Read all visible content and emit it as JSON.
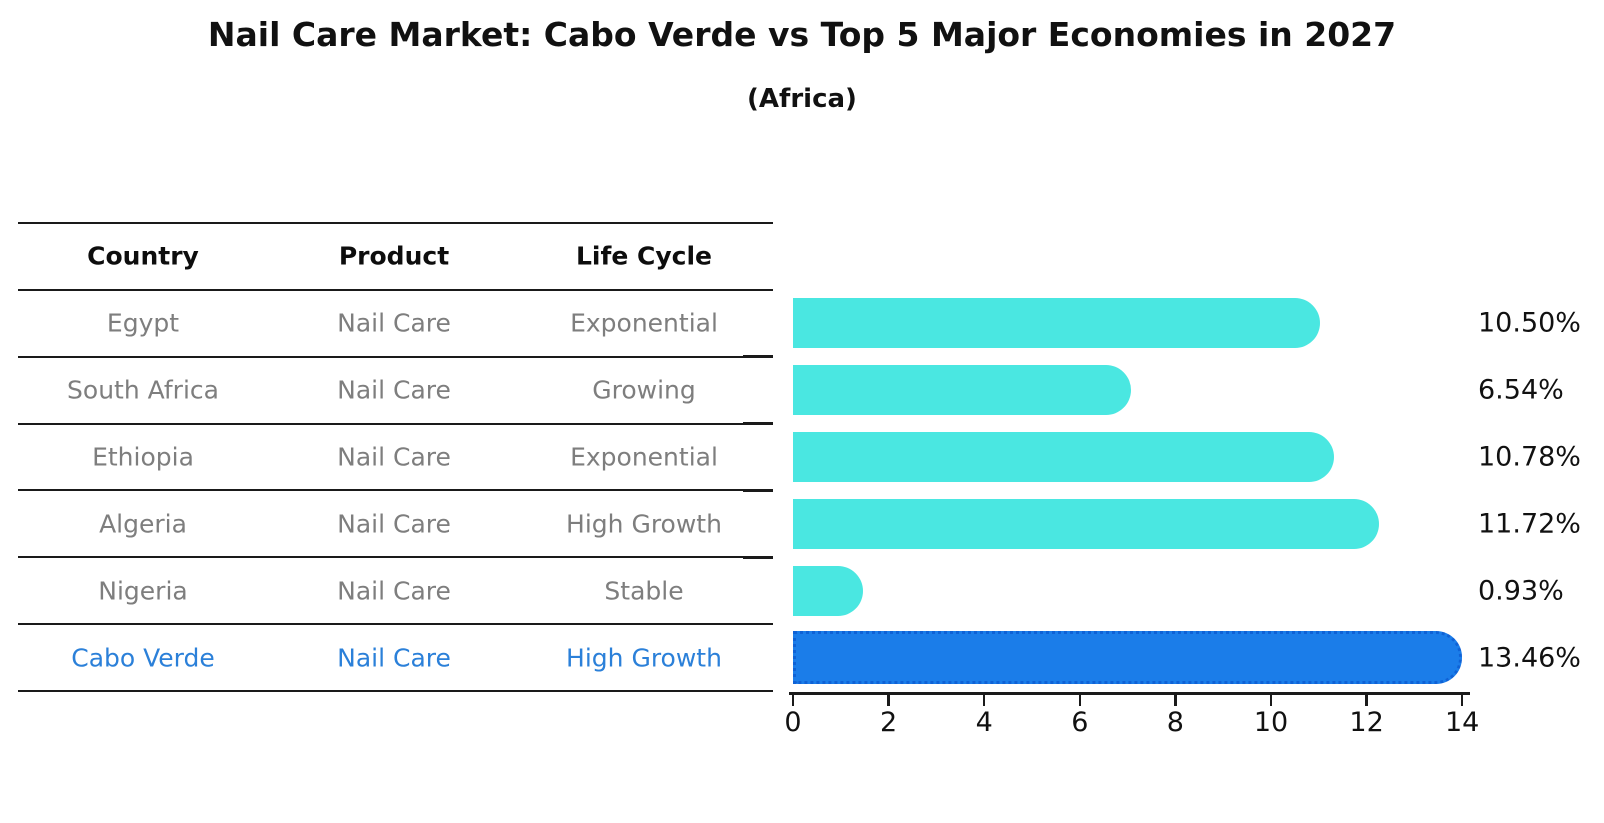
{
  "title": "Nail Care Market: Cabo Verde vs Top 5 Major Economies in 2027",
  "subtitle": "(Africa)",
  "table": {
    "headers": [
      "Country",
      "Product",
      "Life Cycle"
    ],
    "rows": [
      {
        "country": "Egypt",
        "product": "Nail Care",
        "life_cycle": "Exponential",
        "highlight": false
      },
      {
        "country": "South Africa",
        "product": "Nail Care",
        "life_cycle": "Growing",
        "highlight": false
      },
      {
        "country": "Ethiopia",
        "product": "Nail Care",
        "life_cycle": "Exponential",
        "highlight": false
      },
      {
        "country": "Algeria",
        "product": "Nail Care",
        "life_cycle": "High Growth",
        "highlight": false
      },
      {
        "country": "Nigeria",
        "product": "Nail Care",
        "life_cycle": "Stable",
        "highlight": false
      },
      {
        "country": "Cabo Verde",
        "product": "Nail Care",
        "life_cycle": "High Growth",
        "highlight": true
      }
    ]
  },
  "chart_data": {
    "type": "bar",
    "orientation": "horizontal",
    "title": "Nail Care Market: Cabo Verde vs Top 5 Major Economies in 2027",
    "subtitle": "(Africa)",
    "categories": [
      "Egypt",
      "South Africa",
      "Ethiopia",
      "Algeria",
      "Nigeria",
      "Cabo Verde"
    ],
    "values": [
      10.5,
      6.54,
      10.78,
      11.72,
      0.93,
      13.46
    ],
    "value_labels": [
      "10.50%",
      "6.54%",
      "10.78%",
      "11.72%",
      "0.93%",
      "13.46%"
    ],
    "xlabel": "",
    "ylabel": "",
    "xlim": [
      0,
      14
    ],
    "x_ticks": [
      0,
      2,
      4,
      6,
      8,
      10,
      12,
      14
    ],
    "grid": false,
    "legend": null,
    "highlight_index": 5
  },
  "colors": {
    "bar": "#4AE7E1",
    "highlight_bar": "#1B7DE9",
    "highlight_bar_border": "#0F62D6",
    "highlight_text": "#2B80D9",
    "row_text": "#7E7E7E",
    "header_text": "#0D0D0D",
    "axis": "#1A1A1A",
    "background": "#FFFFFF"
  }
}
